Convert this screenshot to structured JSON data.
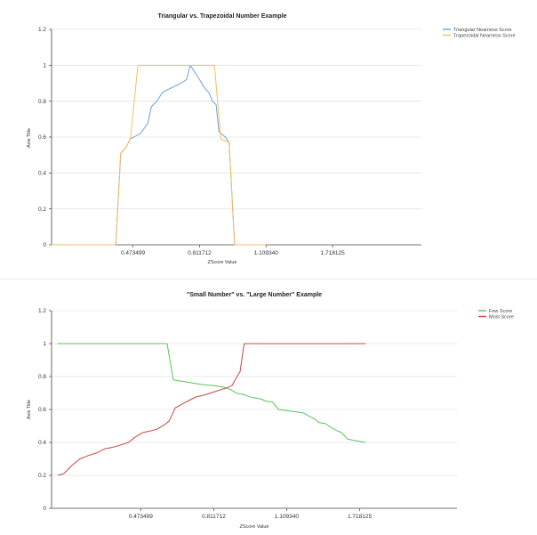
{
  "chart_data": [
    {
      "type": "line",
      "title": "Triangular vs. Trapezoidal Number Example",
      "xlabel": "ZScore Value",
      "ylabel": "Axis Title",
      "ylim": [
        0,
        1.2
      ],
      "xlim": [
        0,
        2
      ],
      "yticks": [
        "0",
        "0.2",
        "0.4",
        "0.6",
        "0.8",
        "1",
        "1.2"
      ],
      "xticks": [
        {
          "value": 0.44,
          "label": "0.473499"
        },
        {
          "value": 0.8,
          "label": "0.811712"
        },
        {
          "value": 1.16,
          "label": "1.109340"
        },
        {
          "value": 1.52,
          "label": "1.718125"
        }
      ],
      "legend": "top-right",
      "series": [
        {
          "name": "Triangular Nearness Score",
          "color": "#6f9fd8",
          "points": [
            [
              0,
              0
            ],
            [
              0.347,
              0
            ],
            [
              0.374,
              0.51
            ],
            [
              0.401,
              0.54
            ],
            [
              0.426,
              0.59
            ],
            [
              0.445,
              0.6
            ],
            [
              0.48,
              0.62
            ],
            [
              0.52,
              0.675
            ],
            [
              0.54,
              0.77
            ],
            [
              0.57,
              0.8
            ],
            [
              0.6,
              0.85
            ],
            [
              0.65,
              0.875
            ],
            [
              0.7,
              0.9
            ],
            [
              0.73,
              0.92
            ],
            [
              0.75,
              1.0
            ],
            [
              0.8,
              0.92
            ],
            [
              0.83,
              0.87
            ],
            [
              0.85,
              0.85
            ],
            [
              0.87,
              0.8
            ],
            [
              0.89,
              0.78
            ],
            [
              0.905,
              0.63
            ],
            [
              0.94,
              0.6
            ],
            [
              0.96,
              0.57
            ],
            [
              0.99,
              0
            ],
            [
              1.16,
              0
            ]
          ]
        },
        {
          "name": "Trapezoidal Nearness Score",
          "color": "#f0c060",
          "points": [
            [
              0,
              0
            ],
            [
              0.347,
              0
            ],
            [
              0.374,
              0.51
            ],
            [
              0.401,
              0.54
            ],
            [
              0.426,
              0.59
            ],
            [
              0.467,
              1.0
            ],
            [
              0.881,
              1.0
            ],
            [
              0.915,
              0.59
            ],
            [
              0.96,
              0.57
            ],
            [
              0.99,
              0
            ],
            [
              1.16,
              0
            ]
          ]
        }
      ]
    },
    {
      "type": "line",
      "title": "\"Small Number\" vs. \"Large Number\" Example",
      "xlabel": "ZScore Value",
      "ylabel": "Axis Title",
      "ylim": [
        0,
        1.2
      ],
      "xlim": [
        0,
        2
      ],
      "yticks": [
        "0",
        "0.2",
        "0.4",
        "0.6",
        "0.8",
        "1",
        "1.2"
      ],
      "xticks": [
        {
          "value": 0.44,
          "label": "0.473499"
        },
        {
          "value": 0.8,
          "label": "0.811712"
        },
        {
          "value": 1.16,
          "label": "1.109340"
        },
        {
          "value": 1.52,
          "label": "1.718125"
        }
      ],
      "legend": "top-right",
      "series": [
        {
          "name": "Few Score",
          "color": "#5cc25c",
          "points": [
            [
              0.03,
              1.0
            ],
            [
              0.57,
              1.0
            ],
            [
              0.6,
              0.78
            ],
            [
              0.65,
              0.77
            ],
            [
              0.7,
              0.76
            ],
            [
              0.75,
              0.75
            ],
            [
              0.8,
              0.745
            ],
            [
              0.85,
              0.735
            ],
            [
              0.885,
              0.72
            ],
            [
              0.91,
              0.7
            ],
            [
              0.95,
              0.69
            ],
            [
              0.97,
              0.68
            ],
            [
              1.0,
              0.67
            ],
            [
              1.03,
              0.665
            ],
            [
              1.06,
              0.65
            ],
            [
              1.09,
              0.645
            ],
            [
              1.12,
              0.6
            ],
            [
              1.15,
              0.595
            ],
            [
              1.18,
              0.59
            ],
            [
              1.24,
              0.58
            ],
            [
              1.3,
              0.54
            ],
            [
              1.32,
              0.52
            ],
            [
              1.35,
              0.515
            ],
            [
              1.38,
              0.49
            ],
            [
              1.41,
              0.47
            ],
            [
              1.43,
              0.46
            ],
            [
              1.46,
              0.42
            ],
            [
              1.5,
              0.41
            ],
            [
              1.55,
              0.4
            ]
          ]
        },
        {
          "name": "Most Score",
          "color": "#cc4444",
          "points": [
            [
              0.03,
              0.2
            ],
            [
              0.06,
              0.21
            ],
            [
              0.1,
              0.26
            ],
            [
              0.14,
              0.3
            ],
            [
              0.18,
              0.32
            ],
            [
              0.22,
              0.335
            ],
            [
              0.26,
              0.36
            ],
            [
              0.3,
              0.37
            ],
            [
              0.33,
              0.38
            ],
            [
              0.38,
              0.4
            ],
            [
              0.41,
              0.43
            ],
            [
              0.45,
              0.46
            ],
            [
              0.49,
              0.47
            ],
            [
              0.52,
              0.48
            ],
            [
              0.56,
              0.51
            ],
            [
              0.58,
              0.53
            ],
            [
              0.61,
              0.61
            ],
            [
              0.64,
              0.63
            ],
            [
              0.67,
              0.65
            ],
            [
              0.71,
              0.675
            ],
            [
              0.76,
              0.69
            ],
            [
              0.81,
              0.71
            ],
            [
              0.86,
              0.73
            ],
            [
              0.89,
              0.745
            ],
            [
              0.91,
              0.79
            ],
            [
              0.93,
              0.83
            ],
            [
              0.95,
              1.0
            ],
            [
              1.0,
              1.0
            ],
            [
              1.55,
              1.0
            ]
          ]
        }
      ]
    }
  ]
}
